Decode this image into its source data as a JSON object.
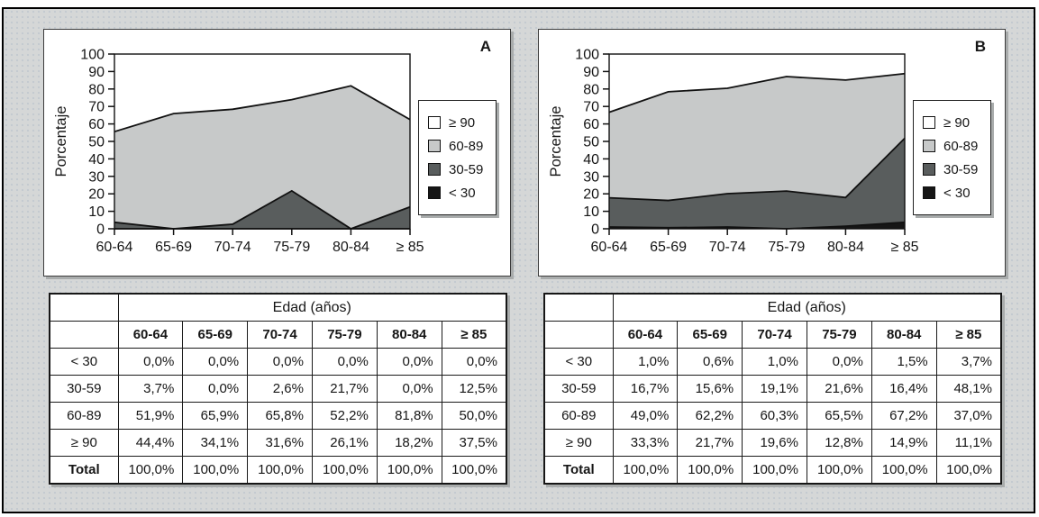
{
  "figure_type": "stacked-area-charts-with-tables",
  "colors": {
    "canvas_background": "#d5d7d7",
    "panel_background": "#ffffff",
    "line": "#111111",
    "series_ge90": "#ffffff",
    "series_60_89": "#c7c9c9",
    "series_30_59": "#595d5d",
    "series_lt30": "#161616"
  },
  "chart_data": [
    {
      "type": "area",
      "stacked": true,
      "title": "A",
      "ylabel": "Porcentaje",
      "xlabel": "",
      "categories": [
        "60-64",
        "65-69",
        "70-74",
        "75-79",
        "80-84",
        "≥ 85"
      ],
      "series": [
        {
          "name": "< 30",
          "color": "#161616",
          "values": [
            0.0,
            0.0,
            0.0,
            0.0,
            0.0,
            0.0
          ]
        },
        {
          "name": "30-59",
          "color": "#595d5d",
          "values": [
            3.7,
            0.0,
            2.6,
            21.7,
            0.0,
            12.5
          ]
        },
        {
          "name": "60-89",
          "color": "#c7c9c9",
          "values": [
            51.9,
            65.9,
            65.8,
            52.2,
            81.8,
            50.0
          ]
        },
        {
          "name": "≥ 90",
          "color": "#ffffff",
          "values": [
            44.4,
            34.1,
            31.6,
            26.1,
            18.2,
            37.5
          ]
        }
      ],
      "ylim": [
        0,
        100
      ],
      "yticks": [
        0,
        10,
        20,
        30,
        40,
        50,
        60,
        70,
        80,
        90,
        100
      ],
      "grid": false,
      "legend_position": "right",
      "legend_order_top_to_bottom": [
        "≥ 90",
        "60-89",
        "30-59",
        "< 30"
      ]
    },
    {
      "type": "area",
      "stacked": true,
      "title": "B",
      "ylabel": "Porcentaje",
      "xlabel": "",
      "categories": [
        "60-64",
        "65-69",
        "70-74",
        "75-79",
        "80-84",
        "≥ 85"
      ],
      "series": [
        {
          "name": "< 30",
          "color": "#161616",
          "values": [
            1.0,
            0.6,
            1.0,
            0.0,
            1.5,
            3.7
          ]
        },
        {
          "name": "30-59",
          "color": "#595d5d",
          "values": [
            16.7,
            15.6,
            19.1,
            21.6,
            16.4,
            48.1
          ]
        },
        {
          "name": "60-89",
          "color": "#c7c9c9",
          "values": [
            49.0,
            62.2,
            60.3,
            65.5,
            67.2,
            37.0
          ]
        },
        {
          "name": "≥ 90",
          "color": "#ffffff",
          "values": [
            33.3,
            21.7,
            19.6,
            12.8,
            14.9,
            11.1
          ]
        }
      ],
      "ylim": [
        0,
        100
      ],
      "yticks": [
        0,
        10,
        20,
        30,
        40,
        50,
        60,
        70,
        80,
        90,
        100
      ],
      "grid": false,
      "legend_position": "right",
      "legend_order_top_to_bottom": [
        "≥ 90",
        "60-89",
        "30-59",
        "< 30"
      ]
    }
  ],
  "tables": [
    {
      "caption": "Edad (años)",
      "columns": [
        "60-64",
        "65-69",
        "70-74",
        "75-79",
        "80-84",
        "≥ 85"
      ],
      "rows": [
        {
          "label": "< 30",
          "values": [
            "0,0%",
            "0,0%",
            "0,0%",
            "0,0%",
            "0,0%",
            "0,0%"
          ]
        },
        {
          "label": "30-59",
          "values": [
            "3,7%",
            "0,0%",
            "2,6%",
            "21,7%",
            "0,0%",
            "12,5%"
          ]
        },
        {
          "label": "60-89",
          "values": [
            "51,9%",
            "65,9%",
            "65,8%",
            "52,2%",
            "81,8%",
            "50,0%"
          ]
        },
        {
          "label": "≥ 90",
          "values": [
            "44,4%",
            "34,1%",
            "31,6%",
            "26,1%",
            "18,2%",
            "37,5%"
          ]
        },
        {
          "label": "Total",
          "values": [
            "100,0%",
            "100,0%",
            "100,0%",
            "100,0%",
            "100,0%",
            "100,0%"
          ]
        }
      ]
    },
    {
      "caption": "Edad (años)",
      "columns": [
        "60-64",
        "65-69",
        "70-74",
        "75-79",
        "80-84",
        "≥ 85"
      ],
      "rows": [
        {
          "label": "< 30",
          "values": [
            "1,0%",
            "0,6%",
            "1,0%",
            "0,0%",
            "1,5%",
            "3,7%"
          ]
        },
        {
          "label": "30-59",
          "values": [
            "16,7%",
            "15,6%",
            "19,1%",
            "21,6%",
            "16,4%",
            "48,1%"
          ]
        },
        {
          "label": "60-89",
          "values": [
            "49,0%",
            "62,2%",
            "60,3%",
            "65,5%",
            "67,2%",
            "37,0%"
          ]
        },
        {
          "label": "≥ 90",
          "values": [
            "33,3%",
            "21,7%",
            "19,6%",
            "12,8%",
            "14,9%",
            "11,1%"
          ]
        },
        {
          "label": "Total",
          "values": [
            "100,0%",
            "100,0%",
            "100,0%",
            "100,0%",
            "100,0%",
            "100,0%"
          ]
        }
      ]
    }
  ]
}
